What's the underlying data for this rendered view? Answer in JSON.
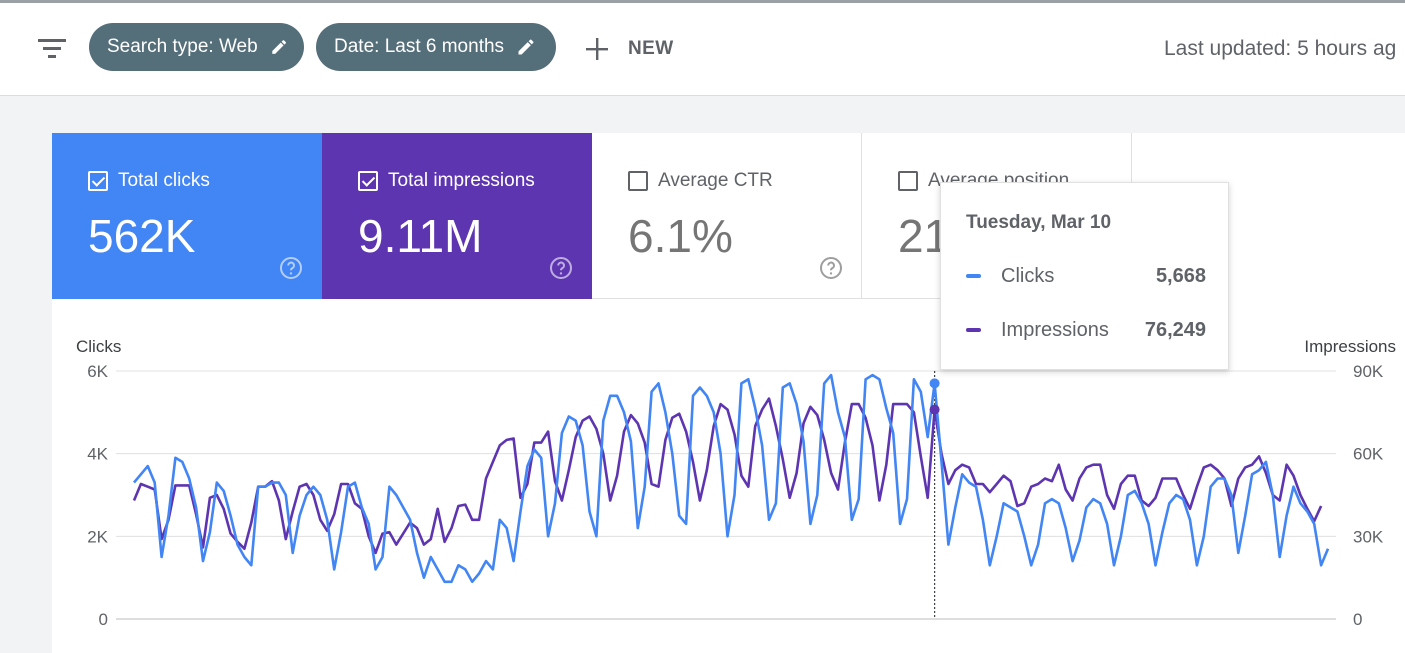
{
  "toolbar": {
    "filter_icon": "filter-list-icon",
    "chips": [
      {
        "label": "Search type: Web",
        "icon": "pencil-icon"
      },
      {
        "label": "Date: Last 6 months",
        "icon": "pencil-icon"
      }
    ],
    "new_label": "NEW",
    "last_updated": "Last updated: 5 hours ag"
  },
  "metrics": [
    {
      "label": "Total clicks",
      "value": "562K",
      "checked": true,
      "color": "#4285f4"
    },
    {
      "label": "Total impressions",
      "value": "9.11M",
      "checked": true,
      "color": "#5e35b1"
    },
    {
      "label": "Average CTR",
      "value": "6.1%",
      "checked": false
    },
    {
      "label": "Average position",
      "value": "21",
      "checked": false
    }
  ],
  "tooltip": {
    "date": "Tuesday, Mar 10",
    "rows": [
      {
        "name": "Clicks",
        "value": "5,668",
        "color": "#4285f4"
      },
      {
        "name": "Impressions",
        "value": "76,249",
        "color": "#5e35b1"
      }
    ]
  },
  "chart_data": {
    "type": "line",
    "left_axis": {
      "label": "Clicks",
      "ticks": [
        "0",
        "2K",
        "4K",
        "6K"
      ],
      "range": [
        0,
        6000
      ]
    },
    "right_axis": {
      "label": "Impressions",
      "ticks": [
        "0",
        "30K",
        "60K",
        "90K"
      ],
      "range": [
        0,
        90000
      ]
    },
    "grid": true,
    "hover_index": 116,
    "series": [
      {
        "name": "Clicks",
        "color": "#4285f4",
        "values": [
          3300,
          3500,
          3700,
          3300,
          1500,
          2500,
          3900,
          3800,
          3400,
          2700,
          1400,
          2100,
          3300,
          3100,
          2500,
          1800,
          1500,
          1300,
          3200,
          3200,
          3300,
          3300,
          3000,
          1600,
          2500,
          3000,
          3200,
          3000,
          2400,
          1200,
          2100,
          3200,
          3300,
          2700,
          2300,
          1200,
          1500,
          3200,
          3000,
          2700,
          2400,
          1600,
          1000,
          1500,
          1200,
          900,
          900,
          1300,
          1200,
          900,
          1100,
          1400,
          1200,
          2400,
          2200,
          1400,
          2600,
          3700,
          4100,
          3900,
          2000,
          2800,
          4500,
          4900,
          4800,
          4200,
          2600,
          2000,
          4800,
          5400,
          5400,
          5000,
          4300,
          2200,
          3200,
          5500,
          5700,
          5000,
          4000,
          2500,
          2300,
          5400,
          5600,
          5400,
          5000,
          4000,
          2000,
          3000,
          5700,
          5800,
          5100,
          4200,
          2400,
          2800,
          5600,
          5700,
          5200,
          4300,
          2300,
          3000,
          5700,
          5900,
          5000,
          4400,
          2400,
          2900,
          5800,
          5900,
          5800,
          5100,
          4500,
          2300,
          2900,
          5800,
          5500,
          4400,
          5700,
          3800,
          1800,
          2700,
          3500,
          3300,
          3200,
          2400,
          1300,
          2000,
          2800,
          2700,
          2600,
          2000,
          1300,
          1800,
          2800,
          2900,
          2800,
          2200,
          1400,
          1900,
          2700,
          2900,
          2800,
          2300,
          1300,
          2000,
          3000,
          3100,
          2800,
          2300,
          1300,
          2100,
          2800,
          3000,
          2900,
          2400,
          1300,
          2000,
          3200,
          3400,
          3400,
          3000,
          1600,
          2500,
          3500,
          3600,
          3800,
          3000,
          1500,
          2500,
          3200,
          2800,
          2600,
          2300,
          1300,
          1700
        ]
      },
      {
        "name": "Impressions",
        "color": "#5e35b1",
        "values": [
          43000,
          49000,
          48000,
          47000,
          29000,
          36000,
          48500,
          48500,
          48500,
          38000,
          26000,
          44000,
          45000,
          40000,
          31000,
          28000,
          25500,
          35000,
          48000,
          48000,
          50000,
          43000,
          29000,
          39000,
          48000,
          49000,
          45000,
          36000,
          32000,
          38000,
          49000,
          49000,
          42000,
          40000,
          30000,
          24000,
          31000,
          31500,
          27000,
          31000,
          35000,
          33000,
          27000,
          29000,
          40000,
          28000,
          33000,
          41000,
          41500,
          36000,
          36000,
          51000,
          57000,
          63000,
          65000,
          65500,
          44000,
          49000,
          64000,
          64000,
          68000,
          50000,
          43000,
          54000,
          66000,
          72000,
          73500,
          69000,
          60000,
          43000,
          52000,
          68000,
          74000,
          71000,
          64000,
          49000,
          48000,
          65000,
          73000,
          74500,
          68000,
          57000,
          43000,
          54000,
          70000,
          78000,
          76000,
          67000,
          52000,
          48000,
          70000,
          76000,
          80000,
          70000,
          58000,
          44000,
          53000,
          71000,
          77000,
          74000,
          65000,
          53000,
          47000,
          64000,
          78000,
          78000,
          73000,
          63000,
          43000,
          56000,
          78000,
          78000,
          78000,
          75000,
          59000,
          44000,
          76000,
          60000,
          49000,
          54000,
          56000,
          55000,
          49000,
          49000,
          46000,
          49000,
          52000,
          50000,
          41000,
          42000,
          48000,
          49000,
          51000,
          50000,
          56000,
          47000,
          43000,
          51000,
          55000,
          56000,
          56000,
          45000,
          40000,
          49000,
          52000,
          52000,
          43000,
          41000,
          44000,
          51000,
          51000,
          51000,
          45000,
          40000,
          48000,
          55000,
          56000,
          54000,
          51000,
          41000,
          51000,
          55000,
          56000,
          59000,
          53000,
          45000,
          43000,
          56000,
          52000,
          45000,
          40000,
          35500,
          41000
        ]
      }
    ]
  }
}
